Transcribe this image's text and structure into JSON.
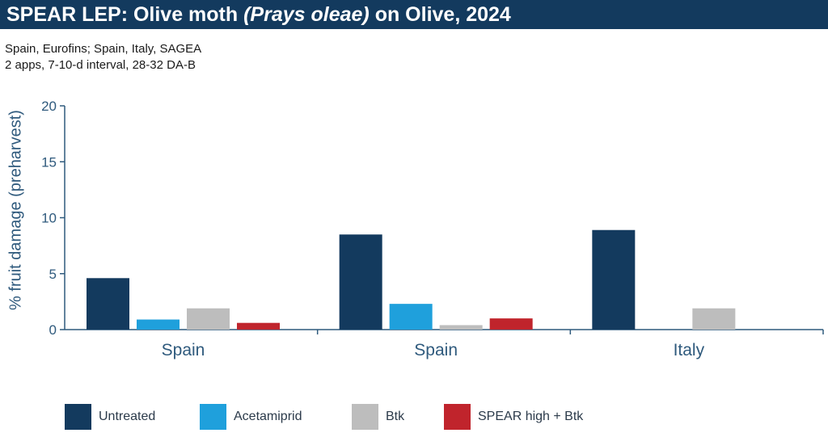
{
  "header": {
    "title_prefix": "SPEAR LEP: Olive moth ",
    "title_italic": "(Prays oleae)",
    "title_suffix": " on Olive, 2024",
    "subtitle_line1": "Spain, Eurofins; Spain, Italy, SAGEA",
    "subtitle_line2": "2 apps, 7-10-d interval,  28-32 DA-B"
  },
  "colors": {
    "title_bar": "#133a5e",
    "untreated": "#133a5e",
    "acetamiprid": "#1fa0dc",
    "btk": "#bdbdbd",
    "spear": "#c0242c"
  },
  "chart_data": {
    "type": "bar",
    "title": "SPEAR LEP: Olive moth (Prays oleae) on Olive, 2024",
    "ylabel": "% fruit damage (preharvest)",
    "xlabel": "",
    "ylim": [
      0,
      20
    ],
    "yticks": [
      0,
      5,
      10,
      15,
      20
    ],
    "categories": [
      "Spain",
      "Spain",
      "Italy"
    ],
    "series": [
      {
        "name": "Untreated",
        "color": "#133a5e",
        "values": [
          4.6,
          8.5,
          8.9
        ]
      },
      {
        "name": "Acetamiprid",
        "color": "#1fa0dc",
        "values": [
          0.9,
          2.3,
          null
        ]
      },
      {
        "name": "Btk",
        "color": "#bdbdbd",
        "values": [
          1.9,
          0.4,
          1.9
        ]
      },
      {
        "name": "SPEAR high + Btk",
        "color": "#c0242c",
        "values": [
          0.6,
          1.0,
          null
        ]
      }
    ],
    "legend_position": "bottom",
    "grid": false
  }
}
